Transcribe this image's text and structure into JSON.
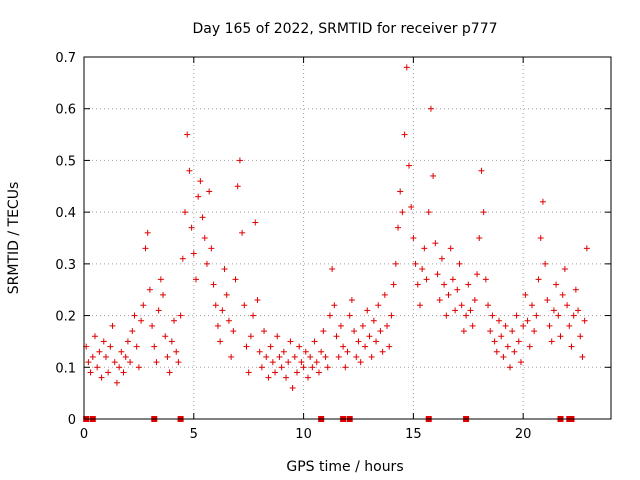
{
  "chart_data": {
    "type": "scatter",
    "title": "Day 165 of 2022, SRMTID for receiver p777",
    "xlabel": "GPS time / hours",
    "ylabel": "SRMTID / TECUs",
    "xlim": [
      0,
      24
    ],
    "ylim": [
      0,
      0.7
    ],
    "x_ticks": [
      0,
      5,
      10,
      15,
      20
    ],
    "y_ticks": [
      0,
      0.1,
      0.2,
      0.3,
      0.4,
      0.5,
      0.6,
      0.7
    ],
    "x_tick_labels": [
      "0",
      "5",
      "10",
      "15",
      "20"
    ],
    "y_tick_labels": [
      "0",
      "0.1",
      "0.2",
      "0.3",
      "0.4",
      "0.5",
      "0.6",
      "0.7"
    ],
    "grid": true,
    "marker": "+",
    "color": "#e00000",
    "series": [
      {
        "name": "SRMTID",
        "points": [
          [
            0.1,
            0.14
          ],
          [
            0.2,
            0.11
          ],
          [
            0.3,
            0.09
          ],
          [
            0.4,
            0.12
          ],
          [
            0.5,
            0.16
          ],
          [
            0.6,
            0.1
          ],
          [
            0.7,
            0.13
          ],
          [
            0.8,
            0.08
          ],
          [
            0.9,
            0.15
          ],
          [
            1.0,
            0.12
          ],
          [
            1.1,
            0.09
          ],
          [
            1.2,
            0.14
          ],
          [
            1.3,
            0.18
          ],
          [
            1.4,
            0.11
          ],
          [
            1.5,
            0.07
          ],
          [
            1.6,
            0.1
          ],
          [
            1.7,
            0.13
          ],
          [
            1.8,
            0.09
          ],
          [
            1.9,
            0.12
          ],
          [
            2.0,
            0.15
          ],
          [
            2.1,
            0.11
          ],
          [
            2.2,
            0.17
          ],
          [
            2.3,
            0.2
          ],
          [
            2.4,
            0.14
          ],
          [
            2.5,
            0.1
          ],
          [
            2.6,
            0.19
          ],
          [
            2.7,
            0.22
          ],
          [
            2.8,
            0.33
          ],
          [
            2.9,
            0.36
          ],
          [
            3.0,
            0.25
          ],
          [
            3.1,
            0.18
          ],
          [
            3.2,
            0.14
          ],
          [
            3.3,
            0.11
          ],
          [
            3.4,
            0.21
          ],
          [
            3.5,
            0.27
          ],
          [
            3.6,
            0.24
          ],
          [
            3.7,
            0.16
          ],
          [
            3.8,
            0.12
          ],
          [
            3.9,
            0.09
          ],
          [
            4.0,
            0.15
          ],
          [
            4.1,
            0.19
          ],
          [
            4.2,
            0.13
          ],
          [
            4.3,
            0.11
          ],
          [
            4.4,
            0.2
          ],
          [
            4.5,
            0.31
          ],
          [
            4.6,
            0.4
          ],
          [
            4.7,
            0.55
          ],
          [
            4.8,
            0.48
          ],
          [
            4.9,
            0.37
          ],
          [
            5.0,
            0.32
          ],
          [
            5.1,
            0.27
          ],
          [
            5.2,
            0.43
          ],
          [
            5.3,
            0.46
          ],
          [
            5.4,
            0.39
          ],
          [
            5.5,
            0.35
          ],
          [
            5.6,
            0.3
          ],
          [
            5.7,
            0.44
          ],
          [
            5.8,
            0.33
          ],
          [
            5.9,
            0.26
          ],
          [
            6.0,
            0.22
          ],
          [
            6.1,
            0.18
          ],
          [
            6.2,
            0.15
          ],
          [
            6.3,
            0.21
          ],
          [
            6.4,
            0.29
          ],
          [
            6.5,
            0.24
          ],
          [
            6.6,
            0.19
          ],
          [
            6.7,
            0.12
          ],
          [
            6.8,
            0.17
          ],
          [
            6.9,
            0.27
          ],
          [
            7.0,
            0.45
          ],
          [
            7.1,
            0.5
          ],
          [
            7.2,
            0.36
          ],
          [
            7.3,
            0.22
          ],
          [
            7.4,
            0.14
          ],
          [
            7.5,
            0.09
          ],
          [
            7.6,
            0.16
          ],
          [
            7.7,
            0.2
          ],
          [
            7.8,
            0.38
          ],
          [
            7.9,
            0.23
          ],
          [
            8.0,
            0.13
          ],
          [
            8.1,
            0.1
          ],
          [
            8.2,
            0.17
          ],
          [
            8.3,
            0.12
          ],
          [
            8.4,
            0.08
          ],
          [
            8.5,
            0.14
          ],
          [
            8.6,
            0.11
          ],
          [
            8.7,
            0.09
          ],
          [
            8.8,
            0.16
          ],
          [
            8.9,
            0.12
          ],
          [
            9.0,
            0.1
          ],
          [
            9.1,
            0.13
          ],
          [
            9.2,
            0.08
          ],
          [
            9.3,
            0.11
          ],
          [
            9.4,
            0.15
          ],
          [
            9.5,
            0.06
          ],
          [
            9.6,
            0.12
          ],
          [
            9.7,
            0.09
          ],
          [
            9.8,
            0.14
          ],
          [
            9.9,
            0.11
          ],
          [
            10.0,
            0.1
          ],
          [
            10.1,
            0.13
          ],
          [
            10.2,
            0.08
          ],
          [
            10.3,
            0.12
          ],
          [
            10.4,
            0.1
          ],
          [
            10.5,
            0.15
          ],
          [
            10.6,
            0.11
          ],
          [
            10.7,
            0.09
          ],
          [
            10.8,
            0.13
          ],
          [
            10.9,
            0.17
          ],
          [
            11.0,
            0.12
          ],
          [
            11.1,
            0.1
          ],
          [
            11.2,
            0.2
          ],
          [
            11.3,
            0.29
          ],
          [
            11.4,
            0.22
          ],
          [
            11.5,
            0.16
          ],
          [
            11.6,
            0.12
          ],
          [
            11.7,
            0.18
          ],
          [
            11.8,
            0.14
          ],
          [
            11.9,
            0.1
          ],
          [
            12.0,
            0.13
          ],
          [
            12.1,
            0.2
          ],
          [
            12.2,
            0.23
          ],
          [
            12.3,
            0.17
          ],
          [
            12.4,
            0.12
          ],
          [
            12.5,
            0.15
          ],
          [
            12.6,
            0.11
          ],
          [
            12.7,
            0.18
          ],
          [
            12.8,
            0.14
          ],
          [
            12.9,
            0.21
          ],
          [
            13.0,
            0.16
          ],
          [
            13.1,
            0.12
          ],
          [
            13.2,
            0.19
          ],
          [
            13.3,
            0.15
          ],
          [
            13.4,
            0.22
          ],
          [
            13.5,
            0.17
          ],
          [
            13.6,
            0.13
          ],
          [
            13.7,
            0.24
          ],
          [
            13.8,
            0.18
          ],
          [
            13.9,
            0.14
          ],
          [
            14.0,
            0.2
          ],
          [
            14.1,
            0.26
          ],
          [
            14.2,
            0.3
          ],
          [
            14.3,
            0.37
          ],
          [
            14.4,
            0.44
          ],
          [
            14.5,
            0.4
          ],
          [
            14.6,
            0.55
          ],
          [
            14.7,
            0.68
          ],
          [
            14.8,
            0.49
          ],
          [
            14.9,
            0.41
          ],
          [
            15.0,
            0.35
          ],
          [
            15.1,
            0.3
          ],
          [
            15.2,
            0.26
          ],
          [
            15.3,
            0.22
          ],
          [
            15.4,
            0.29
          ],
          [
            15.5,
            0.33
          ],
          [
            15.6,
            0.27
          ],
          [
            15.7,
            0.4
          ],
          [
            15.8,
            0.6
          ],
          [
            15.9,
            0.47
          ],
          [
            16.0,
            0.34
          ],
          [
            16.1,
            0.28
          ],
          [
            16.2,
            0.23
          ],
          [
            16.3,
            0.31
          ],
          [
            16.4,
            0.26
          ],
          [
            16.5,
            0.2
          ],
          [
            16.6,
            0.24
          ],
          [
            16.7,
            0.33
          ],
          [
            16.8,
            0.27
          ],
          [
            16.9,
            0.21
          ],
          [
            17.0,
            0.25
          ],
          [
            17.1,
            0.3
          ],
          [
            17.2,
            0.22
          ],
          [
            17.3,
            0.17
          ],
          [
            17.4,
            0.2
          ],
          [
            17.5,
            0.26
          ],
          [
            17.6,
            0.21
          ],
          [
            17.7,
            0.18
          ],
          [
            17.8,
            0.23
          ],
          [
            17.9,
            0.28
          ],
          [
            18.0,
            0.35
          ],
          [
            18.1,
            0.48
          ],
          [
            18.2,
            0.4
          ],
          [
            18.3,
            0.27
          ],
          [
            18.4,
            0.22
          ],
          [
            18.5,
            0.17
          ],
          [
            18.6,
            0.2
          ],
          [
            18.7,
            0.15
          ],
          [
            18.8,
            0.13
          ],
          [
            18.9,
            0.19
          ],
          [
            19.0,
            0.16
          ],
          [
            19.1,
            0.12
          ],
          [
            19.2,
            0.18
          ],
          [
            19.3,
            0.14
          ],
          [
            19.4,
            0.1
          ],
          [
            19.5,
            0.17
          ],
          [
            19.6,
            0.13
          ],
          [
            19.7,
            0.2
          ],
          [
            19.8,
            0.15
          ],
          [
            19.9,
            0.11
          ],
          [
            20.0,
            0.18
          ],
          [
            20.1,
            0.24
          ],
          [
            20.2,
            0.19
          ],
          [
            20.3,
            0.14
          ],
          [
            20.4,
            0.22
          ],
          [
            20.5,
            0.17
          ],
          [
            20.6,
            0.2
          ],
          [
            20.7,
            0.27
          ],
          [
            20.8,
            0.35
          ],
          [
            20.9,
            0.42
          ],
          [
            21.0,
            0.3
          ],
          [
            21.1,
            0.23
          ],
          [
            21.2,
            0.18
          ],
          [
            21.3,
            0.15
          ],
          [
            21.4,
            0.21
          ],
          [
            21.5,
            0.26
          ],
          [
            21.6,
            0.2
          ],
          [
            21.7,
            0.16
          ],
          [
            21.8,
            0.24
          ],
          [
            21.9,
            0.29
          ],
          [
            22.0,
            0.22
          ],
          [
            22.1,
            0.18
          ],
          [
            22.2,
            0.14
          ],
          [
            22.3,
            0.2
          ],
          [
            22.4,
            0.25
          ],
          [
            22.5,
            0.21
          ],
          [
            22.6,
            0.16
          ],
          [
            22.7,
            0.12
          ],
          [
            22.8,
            0.19
          ],
          [
            22.9,
            0.33
          ]
        ]
      }
    ],
    "flag_markers_x": [
      0.1,
      0.4,
      3.2,
      4.4,
      10.8,
      11.8,
      12.1,
      15.7,
      17.4,
      21.7,
      22.1,
      22.2
    ]
  }
}
